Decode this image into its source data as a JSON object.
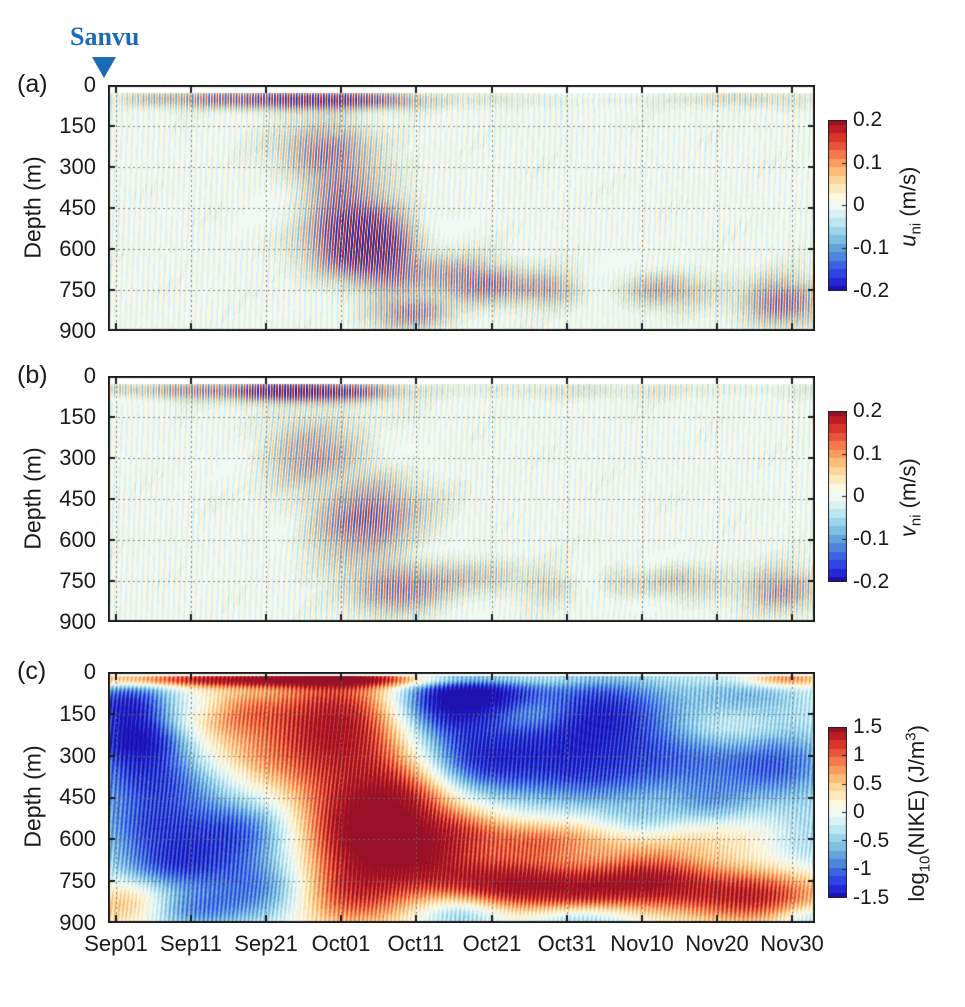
{
  "figure": {
    "storm": {
      "label": "Sanvu",
      "color": "#1b6cb8"
    },
    "panels": [
      {
        "letter": "(a)",
        "ylabel": "Depth (m)",
        "cb_var": "u",
        "cb_sub": "ni",
        "cb_unit": " (m/s)"
      },
      {
        "letter": "(b)",
        "ylabel": "Depth (m)",
        "cb_var": "v",
        "cb_sub": "ni",
        "cb_unit": " (m/s)"
      },
      {
        "letter": "(c)",
        "ylabel": "Depth (m)",
        "cb_pre": "log",
        "cb_sub": "10",
        "cb_mid": "(NIKE) (J/m",
        "cb_sup": "3",
        "cb_post": ")"
      }
    ],
    "xtick_labels": [
      "Sep01",
      "Sep11",
      "Sep21",
      "Oct01",
      "Oct11",
      "Oct21",
      "Oct31",
      "Nov10",
      "Nov20",
      "Nov30"
    ],
    "depth_ticks": [
      "0",
      "150",
      "300",
      "450",
      "600",
      "750",
      "900"
    ],
    "cb_ticks_uv": [
      "0.2",
      "0.1",
      "0",
      "-0.1",
      "-0.2"
    ],
    "cb_ticks_nike": [
      "1.5",
      "1",
      "0.5",
      "0",
      "-0.5",
      "-1",
      "-1.5"
    ]
  },
  "chart_config": {
    "axis_color": "#1a1a1a",
    "grid_color": "rgba(110,110,105,0.8)",
    "xtick_days": [
      0,
      10,
      20,
      30,
      40,
      50,
      60,
      70,
      80,
      90
    ],
    "ygrid_m": [
      150,
      300,
      450,
      600,
      750
    ],
    "ytick_m": [
      0,
      150,
      300,
      450,
      600,
      750,
      900
    ]
  },
  "colormap": [
    "#1d12ae",
    "#2526d8",
    "#2e44e4",
    "#3c64e2",
    "#4f86dc",
    "#64a4da",
    "#7fc0e2",
    "#9dd4ea",
    "#bce6f0",
    "#daf1f4",
    "#f0faf4",
    "#fdf8e0",
    "#fee9bd",
    "#fdd69a",
    "#fdbc78",
    "#fb9c5e",
    "#f47a4c",
    "#e9553c",
    "#d83429",
    "#bb1c26",
    "#981127"
  ],
  "chart_data": [
    {
      "id": "a",
      "type": "heatmap",
      "variable": "u_ni near-inertial zonal velocity (m/s)",
      "x_axis": "time, Sep01 to Nov30 (ticks every 10 days)",
      "x_range_days": [
        -1,
        93
      ],
      "depth_range_m": [
        0,
        900
      ],
      "min_depth_m": 30,
      "clim": [
        -0.2,
        0.2
      ],
      "render": "striped",
      "stripe_period_days": 0.72,
      "features": [
        {
          "t": 26,
          "st": 6.5,
          "d": 55,
          "sd": 28,
          "a": 0.21,
          "tl": 0.5,
          "ph": 0.0
        },
        {
          "t": 14,
          "st": 5,
          "d": 52,
          "sd": 26,
          "a": 0.11,
          "tl": 0.4,
          "ph": 1.1
        },
        {
          "t": 5,
          "st": 4,
          "d": 50,
          "sd": 25,
          "a": 0.08,
          "tl": 0.4,
          "ph": 2.3
        },
        {
          "t": 36,
          "st": 4,
          "d": 58,
          "sd": 26,
          "a": 0.09,
          "tl": 0.6,
          "ph": 0.7
        },
        {
          "t": 60,
          "st": 28,
          "d": 55,
          "sd": 24,
          "a": 0.045,
          "tl": 0.3,
          "ph": 2.0
        },
        {
          "t": 84,
          "st": 5,
          "d": 52,
          "sd": 24,
          "a": 0.055,
          "tl": 0.3,
          "ph": 0.4
        },
        {
          "t": 28,
          "st": 5,
          "d": 240,
          "sd": 90,
          "a": 0.13,
          "tl": 2.6,
          "ph": 2.9
        },
        {
          "t": 30,
          "st": 4,
          "d": 390,
          "sd": 80,
          "a": 0.1,
          "tl": 2.8,
          "ph": 1.2
        },
        {
          "t": 32.5,
          "st": 5.5,
          "d": 540,
          "sd": 115,
          "a": 0.22,
          "tl": 2.4,
          "ph": 4.0
        },
        {
          "t": 36,
          "st": 4,
          "d": 640,
          "sd": 80,
          "a": 0.1,
          "tl": 2.2,
          "ph": 5.0
        },
        {
          "t": 39.5,
          "st": 4.5,
          "d": 835,
          "sd": 55,
          "a": 0.16,
          "tl": 1.0,
          "ph": 0.3
        },
        {
          "t": 44,
          "st": 4,
          "d": 660,
          "sd": 60,
          "a": 0.07,
          "tl": 1.2,
          "ph": 0.9
        },
        {
          "t": 50,
          "st": 5.5,
          "d": 735,
          "sd": 55,
          "a": 0.13,
          "tl": 0.8,
          "ph": 3.3
        },
        {
          "t": 57.5,
          "st": 4,
          "d": 750,
          "sd": 50,
          "a": 0.11,
          "tl": 0.8,
          "ph": 1.6
        },
        {
          "t": 72,
          "st": 5,
          "d": 748,
          "sd": 55,
          "a": 0.13,
          "tl": 0.8,
          "ph": 4.6
        },
        {
          "t": 88.5,
          "st": 4.5,
          "d": 795,
          "sd": 70,
          "a": 0.15,
          "tl": 0.9,
          "ph": 2.1
        }
      ]
    },
    {
      "id": "b",
      "type": "heatmap",
      "variable": "v_ni near-inertial meridional velocity (m/s)",
      "x_axis": "time, Sep01 to Nov30 (ticks every 10 days)",
      "x_range_days": [
        -1,
        93
      ],
      "depth_range_m": [
        0,
        900
      ],
      "min_depth_m": 30,
      "clim": [
        -0.2,
        0.2
      ],
      "render": "striped",
      "stripe_period_days": 0.72,
      "features": [
        {
          "t": 23,
          "st": 7.5,
          "d": 55,
          "sd": 28,
          "a": 0.21,
          "tl": 0.5,
          "ph": 0.9
        },
        {
          "t": 9,
          "st": 5,
          "d": 52,
          "sd": 26,
          "a": 0.13,
          "tl": 0.4,
          "ph": 2.6
        },
        {
          "t": 1,
          "st": 3,
          "d": 50,
          "sd": 25,
          "a": 0.12,
          "tl": 0.4,
          "ph": 4.1
        },
        {
          "t": 33,
          "st": 4,
          "d": 58,
          "sd": 25,
          "a": 0.08,
          "tl": 0.5,
          "ph": 1.8
        },
        {
          "t": 62,
          "st": 28,
          "d": 54,
          "sd": 23,
          "a": 0.04,
          "tl": 0.3,
          "ph": 0.2
        },
        {
          "t": 27,
          "st": 6,
          "d": 280,
          "sd": 110,
          "a": 0.16,
          "tl": 2.6,
          "ph": 5.5
        },
        {
          "t": 33,
          "st": 6,
          "d": 530,
          "sd": 115,
          "a": 0.2,
          "tl": 2.4,
          "ph": 2.2
        },
        {
          "t": 38,
          "st": 5,
          "d": 800,
          "sd": 70,
          "a": 0.13,
          "tl": 1.2,
          "ph": 4.9
        },
        {
          "t": 49,
          "st": 6,
          "d": 740,
          "sd": 58,
          "a": 0.11,
          "tl": 0.8,
          "ph": 1.4
        },
        {
          "t": 58,
          "st": 4.5,
          "d": 765,
          "sd": 50,
          "a": 0.1,
          "tl": 0.8,
          "ph": 3.8
        },
        {
          "t": 67,
          "st": 4,
          "d": 760,
          "sd": 50,
          "a": 0.09,
          "tl": 0.8,
          "ph": 0.6
        },
        {
          "t": 74.5,
          "st": 5,
          "d": 750,
          "sd": 55,
          "a": 0.11,
          "tl": 0.8,
          "ph": 5.3
        },
        {
          "t": 88.5,
          "st": 4.5,
          "d": 780,
          "sd": 60,
          "a": 0.12,
          "tl": 0.9,
          "ph": 2.8
        }
      ]
    },
    {
      "id": "c",
      "type": "heatmap",
      "variable": "log10(NIKE) (J/m^3)",
      "x_axis": "time, Sep01 to Nov30 (ticks every 10 days)",
      "x_range_days": [
        -1,
        93
      ],
      "depth_range_m": [
        0,
        900
      ],
      "min_depth_m": 15,
      "clim": [
        -1.5,
        1.5
      ],
      "render": "blobs",
      "texture": {
        "period_days": 0.55,
        "amp": 0.32
      },
      "blobs": [
        {
          "t": 20,
          "st": 22,
          "d": 28,
          "sd": 18,
          "a": 1.4
        },
        {
          "t": 13,
          "st": 6,
          "d": 140,
          "sd": 60,
          "a": 0.9
        },
        {
          "t": 16,
          "st": 7,
          "d": 320,
          "sd": 90,
          "a": 0.55
        },
        {
          "t": 30,
          "st": 7,
          "d": 190,
          "sd": 150,
          "a": 1.5
        },
        {
          "t": 33,
          "st": 6,
          "d": 560,
          "sd": 130,
          "a": 1.6
        },
        {
          "t": 31,
          "st": 6,
          "d": 800,
          "sd": 90,
          "a": 1.0
        },
        {
          "t": 40,
          "st": 5,
          "d": 420,
          "sd": 110,
          "a": 0.9
        },
        {
          "t": 41,
          "st": 5,
          "d": 660,
          "sd": 80,
          "a": 0.9
        },
        {
          "t": 47,
          "st": 4,
          "d": 560,
          "sd": 60,
          "a": 0.5
        },
        {
          "t": 52,
          "st": 7,
          "d": 760,
          "sd": 70,
          "a": 1.5
        },
        {
          "t": 62,
          "st": 5,
          "d": 790,
          "sd": 55,
          "a": 0.7
        },
        {
          "t": 71,
          "st": 6,
          "d": 750,
          "sd": 70,
          "a": 1.35
        },
        {
          "t": 85,
          "st": 7,
          "d": 805,
          "sd": 70,
          "a": 1.3
        },
        {
          "t": 56,
          "st": 5,
          "d": 610,
          "sd": 50,
          "a": 0.55
        },
        {
          "t": 70,
          "st": 16,
          "d": 590,
          "sd": 55,
          "a": 0.45
        },
        {
          "t": 89,
          "st": 4,
          "d": 25,
          "sd": 20,
          "a": 1.0
        },
        {
          "t": 56,
          "st": 4,
          "d": 145,
          "sd": 50,
          "a": 0.45
        },
        {
          "t": 82,
          "st": 5,
          "d": 200,
          "sd": 60,
          "a": 0.4
        },
        {
          "t": 2,
          "st": 4,
          "d": 830,
          "sd": 60,
          "a": 0.7
        },
        {
          "t": 2,
          "st": 5,
          "d": 110,
          "sd": 60,
          "a": -1.3
        },
        {
          "t": 3,
          "st": 5,
          "d": 240,
          "sd": 70,
          "a": -1.5
        },
        {
          "t": 6,
          "st": 7,
          "d": 390,
          "sd": 80,
          "a": -1.2
        },
        {
          "t": 5,
          "st": 6,
          "d": 550,
          "sd": 70,
          "a": -0.9
        },
        {
          "t": 8,
          "st": 6,
          "d": 690,
          "sd": 70,
          "a": -1.1
        },
        {
          "t": 10,
          "st": 5,
          "d": 855,
          "sd": 55,
          "a": -0.8
        },
        {
          "t": 17,
          "st": 5,
          "d": 570,
          "sd": 80,
          "a": -0.9
        },
        {
          "t": 20,
          "st": 5,
          "d": 780,
          "sd": 80,
          "a": -0.9
        },
        {
          "t": 12,
          "st": 3,
          "d": 130,
          "sd": 40,
          "a": -0.5
        },
        {
          "t": 43,
          "st": 5,
          "d": 110,
          "sd": 90,
          "a": -1.4
        },
        {
          "t": 46,
          "st": 6,
          "d": 330,
          "sd": 90,
          "a": -1.0
        },
        {
          "t": 50,
          "st": 5,
          "d": 75,
          "sd": 55,
          "a": -1.0
        },
        {
          "t": 55,
          "st": 8,
          "d": 250,
          "sd": 120,
          "a": -0.75
        },
        {
          "t": 65,
          "st": 7,
          "d": 140,
          "sd": 110,
          "a": -1.2
        },
        {
          "t": 64,
          "st": 8,
          "d": 380,
          "sd": 90,
          "a": -0.8
        },
        {
          "t": 76,
          "st": 6,
          "d": 300,
          "sd": 90,
          "a": -0.6
        },
        {
          "t": 88,
          "st": 6,
          "d": 330,
          "sd": 100,
          "a": -1.0
        },
        {
          "t": 84,
          "st": 6,
          "d": 90,
          "sd": 70,
          "a": -0.6
        },
        {
          "t": 79,
          "st": 4,
          "d": 480,
          "sd": 60,
          "a": -0.5
        },
        {
          "t": 46,
          "st": 4,
          "d": 865,
          "sd": 45,
          "a": -0.7
        },
        {
          "t": 62,
          "st": 5,
          "d": 885,
          "sd": 38,
          "a": -0.6
        },
        {
          "t": 70,
          "st": 4,
          "d": 545,
          "sd": 45,
          "a": -0.5
        },
        {
          "t": 92,
          "st": 4,
          "d": 600,
          "sd": 80,
          "a": -0.5
        },
        {
          "t": 92,
          "st": 3,
          "d": 885,
          "sd": 38,
          "a": -0.6
        }
      ]
    }
  ]
}
